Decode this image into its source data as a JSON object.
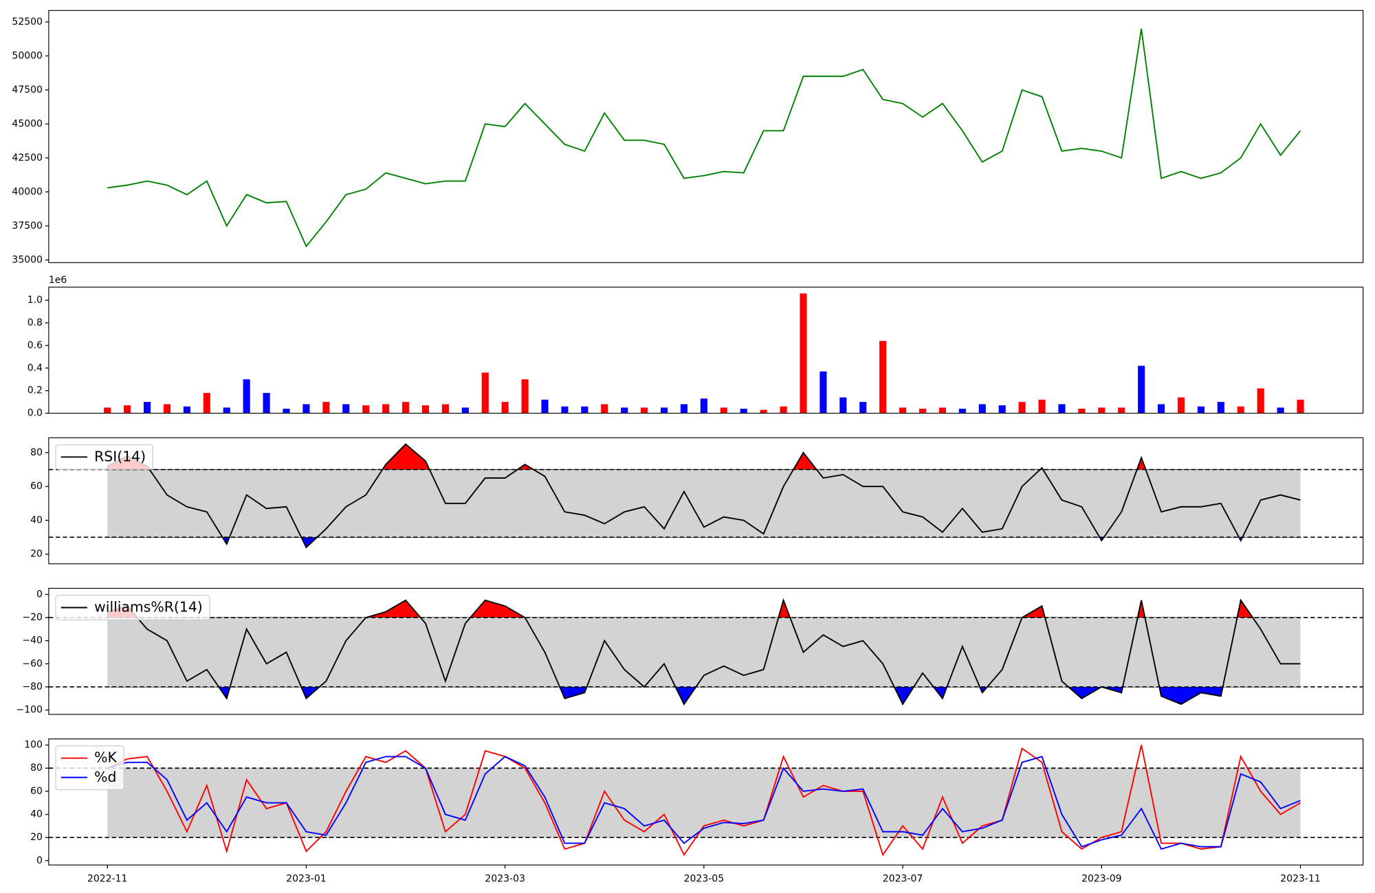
{
  "chart_data": [
    {
      "type": "line",
      "color": "#008000",
      "x": [
        0,
        0.2,
        0.4,
        0.6,
        0.8,
        1,
        1.2,
        1.4,
        1.6,
        1.8,
        2,
        2.2,
        2.4,
        2.6,
        2.8,
        3,
        3.2,
        3.4,
        3.6,
        3.8,
        4,
        4.2,
        4.4,
        4.6,
        4.8,
        5,
        5.2,
        5.4,
        5.6,
        5.8,
        6,
        6.2,
        6.4,
        6.6,
        6.8,
        7,
        7.2,
        7.4,
        7.6,
        7.8,
        8,
        8.2,
        8.4,
        8.6,
        8.8,
        9,
        9.2,
        9.4,
        9.6,
        9.8,
        10,
        10.2,
        10.4,
        10.6,
        10.8,
        11,
        11.2,
        11.4,
        11.6,
        11.8,
        12
      ],
      "values": [
        40300,
        40500,
        40800,
        40500,
        39800,
        40800,
        37500,
        39800,
        39200,
        39300,
        36000,
        37800,
        39800,
        40200,
        41400,
        41000,
        40600,
        40800,
        40800,
        45000,
        44800,
        46500,
        45000,
        43500,
        43000,
        45800,
        43800,
        43800,
        43500,
        41000,
        41200,
        41500,
        41400,
        44500,
        44500,
        48500,
        48500,
        48500,
        49000,
        46800,
        46500,
        45500,
        46500,
        44500,
        42200,
        43000,
        47500,
        47000,
        43000,
        43200,
        43000,
        42500,
        52000,
        41000,
        41500,
        41000,
        41400,
        42500,
        45000,
        42700,
        44500
      ],
      "xlim": [
        -0.59,
        12.63
      ],
      "ylim": [
        34800,
        53340
      ],
      "yticks": [
        35000,
        37500,
        40000,
        42500,
        45000,
        47500,
        50000,
        52500
      ]
    },
    {
      "type": "bar",
      "offset_label": "1e6",
      "x": [
        0,
        0.2,
        0.4,
        0.6,
        0.8,
        1,
        1.2,
        1.4,
        1.6,
        1.8,
        2,
        2.2,
        2.4,
        2.6,
        2.8,
        3,
        3.2,
        3.4,
        3.6,
        3.8,
        4,
        4.2,
        4.4,
        4.6,
        4.8,
        5,
        5.2,
        5.4,
        5.6,
        5.8,
        6,
        6.2,
        6.4,
        6.6,
        6.8,
        7,
        7.2,
        7.4,
        7.6,
        7.8,
        8,
        8.2,
        8.4,
        8.6,
        8.8,
        9,
        9.2,
        9.4,
        9.6,
        9.8,
        10,
        10.2,
        10.4,
        10.6,
        10.8,
        11,
        11.2,
        11.4,
        11.6,
        11.8,
        12
      ],
      "values": [
        0.05,
        0.07,
        0.1,
        0.08,
        0.06,
        0.18,
        0.05,
        0.3,
        0.18,
        0.04,
        0.08,
        0.1,
        0.08,
        0.07,
        0.08,
        0.1,
        0.07,
        0.08,
        0.05,
        0.36,
        0.1,
        0.3,
        0.12,
        0.06,
        0.06,
        0.08,
        0.05,
        0.05,
        0.05,
        0.08,
        0.13,
        0.05,
        0.04,
        0.03,
        0.06,
        1.06,
        0.37,
        0.14,
        0.1,
        0.64,
        0.05,
        0.04,
        0.05,
        0.04,
        0.08,
        0.07,
        0.1,
        0.12,
        0.08,
        0.04,
        0.05,
        0.05,
        0.42,
        0.08,
        0.14,
        0.06,
        0.1,
        0.06,
        0.22,
        0.05,
        0.12
      ],
      "bar_colors": [
        "red",
        "red",
        "blue",
        "red",
        "blue",
        "red",
        "blue",
        "blue",
        "blue",
        "blue",
        "blue",
        "red",
        "blue",
        "red",
        "red",
        "red",
        "red",
        "red",
        "blue",
        "red",
        "red",
        "red",
        "blue",
        "blue",
        "blue",
        "red",
        "blue",
        "red",
        "blue",
        "blue",
        "blue",
        "red",
        "blue",
        "red",
        "red",
        "red",
        "blue",
        "blue",
        "blue",
        "red",
        "red",
        "red",
        "red",
        "blue",
        "blue",
        "blue",
        "red",
        "red",
        "blue",
        "red",
        "red",
        "red",
        "blue",
        "blue",
        "red",
        "blue",
        "blue",
        "red",
        "red",
        "blue",
        "red"
      ],
      "xlim": [
        -0.59,
        12.63
      ],
      "ylim": [
        0,
        1.116
      ],
      "yticks": [
        {
          "value": 0,
          "label": "0.0"
        },
        0.2,
        0.4,
        0.6,
        0.8,
        {
          "value": 1,
          "label": "1.0"
        }
      ]
    },
    {
      "type": "line",
      "x": [
        0,
        0.2,
        0.4,
        0.6,
        0.8,
        1,
        1.2,
        1.4,
        1.6,
        1.8,
        2,
        2.2,
        2.4,
        2.6,
        2.8,
        3,
        3.2,
        3.4,
        3.6,
        3.8,
        4,
        4.2,
        4.4,
        4.6,
        4.8,
        5,
        5.2,
        5.4,
        5.6,
        5.8,
        6,
        6.2,
        6.4,
        6.6,
        6.8,
        7,
        7.2,
        7.4,
        7.6,
        7.8,
        8,
        8.2,
        8.4,
        8.6,
        8.8,
        9,
        9.2,
        9.4,
        9.6,
        9.8,
        10,
        10.2,
        10.4,
        10.6,
        10.8,
        11,
        11.2,
        11.4,
        11.6,
        11.8,
        12
      ],
      "series": [
        {
          "name": "RSI(14)",
          "color": "#000000",
          "values": [
            72,
            78,
            72,
            55,
            48,
            45,
            26,
            55,
            47,
            48,
            24,
            35,
            48,
            55,
            73,
            85,
            75,
            50,
            50,
            65,
            65,
            73,
            66,
            45,
            43,
            38,
            45,
            48,
            35,
            57,
            36,
            42,
            40,
            32,
            60,
            80,
            65,
            67,
            60,
            60,
            45,
            42,
            33,
            47,
            33,
            35,
            60,
            71,
            52,
            48,
            28,
            45,
            77,
            45,
            48,
            48,
            50,
            28,
            52,
            55,
            52
          ]
        }
      ],
      "thresholds": [
        30,
        70
      ],
      "band_color": "#d3d3d3",
      "below_color": "#0000ff",
      "above_color": "#ff0000",
      "xlim": [
        -0.59,
        12.63
      ],
      "ylim": [
        14.3,
        88.8
      ],
      "yticks": [
        20,
        40,
        60,
        80
      ],
      "legend": "upper left"
    },
    {
      "type": "line",
      "x": [
        0,
        0.2,
        0.4,
        0.6,
        0.8,
        1,
        1.2,
        1.4,
        1.6,
        1.8,
        2,
        2.2,
        2.4,
        2.6,
        2.8,
        3,
        3.2,
        3.4,
        3.6,
        3.8,
        4,
        4.2,
        4.4,
        4.6,
        4.8,
        5,
        5.2,
        5.4,
        5.6,
        5.8,
        6,
        6.2,
        6.4,
        6.6,
        6.8,
        7,
        7.2,
        7.4,
        7.6,
        7.8,
        8,
        8.2,
        8.4,
        8.6,
        8.8,
        9,
        9.2,
        9.4,
        9.6,
        9.8,
        10,
        10.2,
        10.4,
        10.6,
        10.8,
        11,
        11.2,
        11.4,
        11.6,
        11.8,
        12
      ],
      "series": [
        {
          "name": "williams%R(14)",
          "color": "#000000",
          "values": [
            -15,
            -10,
            -30,
            -40,
            -75,
            -65,
            -90,
            -30,
            -60,
            -50,
            -90,
            -75,
            -40,
            -20,
            -15,
            -5,
            -25,
            -75,
            -25,
            -5,
            -10,
            -20,
            -50,
            -90,
            -85,
            -40,
            -65,
            -80,
            -60,
            -95,
            -70,
            -62,
            -70,
            -65,
            -5,
            -50,
            -35,
            -45,
            -40,
            -60,
            -95,
            -68,
            -90,
            -45,
            -85,
            -65,
            -20,
            -10,
            -75,
            -90,
            -80,
            -85,
            -5,
            -88,
            -95,
            -85,
            -88,
            -5,
            -30,
            -60,
            -60
          ]
        }
      ],
      "thresholds": [
        -80,
        -20
      ],
      "band_color": "#d3d3d3",
      "below_color": "#0000ff",
      "above_color": "#ff0000",
      "xlim": [
        -0.59,
        12.63
      ],
      "ylim": [
        -103.8,
        5.3
      ],
      "yticks": [
        0,
        {
          "value": -20,
          "label": "−20"
        },
        {
          "value": -40,
          "label": "−40"
        },
        {
          "value": -60,
          "label": "−60"
        },
        {
          "value": -80,
          "label": "−80"
        },
        {
          "value": -100,
          "label": "−100"
        }
      ],
      "legend": "upper left"
    },
    {
      "type": "line",
      "x": [
        0,
        0.2,
        0.4,
        0.6,
        0.8,
        1,
        1.2,
        1.4,
        1.6,
        1.8,
        2,
        2.2,
        2.4,
        2.6,
        2.8,
        3,
        3.2,
        3.4,
        3.6,
        3.8,
        4,
        4.2,
        4.4,
        4.6,
        4.8,
        5,
        5.2,
        5.4,
        5.6,
        5.8,
        6,
        6.2,
        6.4,
        6.6,
        6.8,
        7,
        7.2,
        7.4,
        7.6,
        7.8,
        8,
        8.2,
        8.4,
        8.6,
        8.8,
        9,
        9.2,
        9.4,
        9.6,
        9.8,
        10,
        10.2,
        10.4,
        10.6,
        10.8,
        11,
        11.2,
        11.4,
        11.6,
        11.8,
        12
      ],
      "series": [
        {
          "name": "%K",
          "color": "#ff0000",
          "values": [
            80,
            88,
            90,
            60,
            25,
            65,
            8,
            70,
            45,
            50,
            8,
            25,
            60,
            90,
            85,
            95,
            80,
            25,
            40,
            95,
            90,
            80,
            50,
            10,
            15,
            60,
            35,
            25,
            40,
            5,
            30,
            35,
            30,
            35,
            90,
            55,
            65,
            60,
            60,
            5,
            30,
            10,
            55,
            15,
            30,
            35,
            97,
            85,
            25,
            10,
            20,
            25,
            100,
            15,
            15,
            10,
            12,
            90,
            60,
            40,
            50
          ]
        },
        {
          "name": "%d",
          "color": "#0000ff",
          "values": [
            80,
            85,
            85,
            70,
            35,
            50,
            25,
            55,
            50,
            50,
            25,
            22,
            50,
            85,
            90,
            90,
            80,
            40,
            35,
            75,
            90,
            82,
            55,
            15,
            15,
            50,
            45,
            30,
            35,
            15,
            28,
            33,
            32,
            35,
            80,
            60,
            62,
            60,
            62,
            25,
            25,
            22,
            45,
            25,
            28,
            35,
            85,
            90,
            40,
            12,
            18,
            22,
            45,
            10,
            15,
            12,
            12,
            75,
            68,
            45,
            52
          ]
        }
      ],
      "thresholds": [
        20,
        80
      ],
      "band_color": "#d3d3d3",
      "xlim": [
        -0.59,
        12.63
      ],
      "ylim": [
        -3.8,
        105.3
      ],
      "yticks": [
        0,
        20,
        40,
        60,
        80,
        100
      ],
      "legend": "upper left",
      "xticks": [
        {
          "value": 0,
          "label": "2022-11"
        },
        {
          "value": 2,
          "label": "2023-01"
        },
        {
          "value": 4,
          "label": "2023-03"
        },
        {
          "value": 6,
          "label": "2023-05"
        },
        {
          "value": 8,
          "label": "2023-07"
        },
        {
          "value": 10,
          "label": "2023-09"
        },
        {
          "value": 12,
          "label": "2023-11"
        }
      ]
    }
  ]
}
